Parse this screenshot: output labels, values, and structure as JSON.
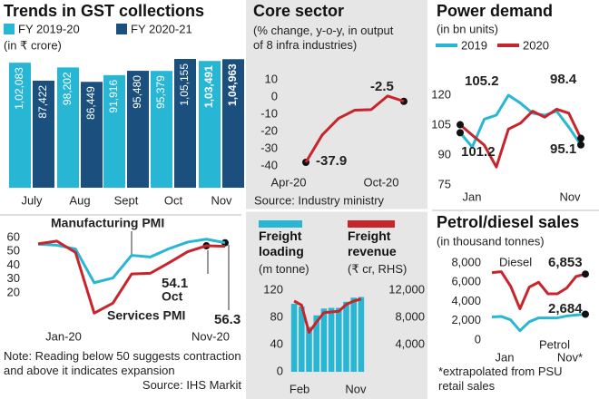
{
  "chart_data": [
    {
      "type": "bar",
      "title": "Trends in GST collections",
      "subtitle": "(in ₹ crore)",
      "categories": [
        "July",
        "Aug",
        "Sept",
        "Oct",
        "Nov"
      ],
      "series": [
        {
          "name": "FY 2019-20",
          "color": "#27b7d4",
          "values": [
            102083,
            98202,
            91916,
            95379,
            103491
          ],
          "value_labels": [
            "1,02,083",
            "98,202",
            "91,916",
            "95,379",
            "1,03,491"
          ]
        },
        {
          "name": "FY 2020-21",
          "color": "#1b4f7e",
          "values": [
            87422,
            86449,
            95480,
            105155,
            104963
          ],
          "value_labels": [
            "87,422",
            "86,449",
            "95,480",
            "1,05,155",
            "1,04,963"
          ]
        }
      ]
    },
    {
      "type": "line",
      "categories": [
        "Jan-20",
        null,
        null,
        null,
        null,
        null,
        null,
        null,
        null,
        null,
        "Nov-20"
      ],
      "series": [
        {
          "name": "Manufacturing PMI",
          "color": "#27b7d4",
          "values": [
            55.3,
            54.5,
            51.8,
            27.4,
            30.8,
            47.2,
            46.0,
            52.0,
            56.8,
            58.9,
            56.3
          ]
        },
        {
          "name": "Services PMI",
          "color": "#c8242b",
          "values": [
            55.5,
            57.5,
            49.3,
            5.4,
            12.6,
            33.7,
            34.2,
            41.8,
            49.8,
            54.1,
            53.7
          ]
        }
      ],
      "annotations": [
        "Oct"
      ],
      "ylim": [
        0,
        62
      ],
      "yticks": [
        20,
        30,
        40,
        50,
        60
      ],
      "note": "Note: Reading below 50 suggests contraction and above it indicates expansion",
      "source": "Source: IHS Markit"
    },
    {
      "type": "line",
      "title": "Core sector",
      "subtitle": "(% change, y-o-y, in output of 8 infra industries)",
      "categories": [
        "Apr-20",
        null,
        null,
        null,
        null,
        null,
        "Oct-20"
      ],
      "series": [
        {
          "color": "#c8242b",
          "values": [
            -37.9,
            -22.0,
            -12.4,
            -7.6,
            -7.3,
            0.6,
            -2.5
          ]
        }
      ],
      "ylim": [
        -40,
        10
      ],
      "yticks": [
        10,
        0,
        -10,
        -20,
        -30,
        -40
      ],
      "source": "Source: Industry ministry"
    },
    {
      "type": "bar-line",
      "categories": [
        "Feb",
        null,
        null,
        null,
        null,
        null,
        null,
        null,
        null,
        "Nov"
      ],
      "series": [
        {
          "name": "Freight loading",
          "unit": "(m tonne)",
          "color": "#27b7d4",
          "values": [
            100,
            96,
            66,
            83,
            93,
            94,
            94,
            103,
            109,
            110
          ]
        },
        {
          "name": "Freight revenue",
          "unit": "(₹ cr, RHS)",
          "color": "#c8242b",
          "axis": "y2",
          "values": [
            10400,
            9800,
            5800,
            7300,
            8700,
            8800,
            8900,
            9900,
            10400,
            10700
          ]
        }
      ],
      "ylim": [
        0,
        120
      ],
      "yticks": [
        0,
        40,
        80,
        120
      ],
      "y2lim": [
        0,
        12000
      ],
      "y2ticks": [
        {
          "value": 4000,
          "label": "4,000"
        },
        {
          "value": 8000,
          "label": "8,000"
        },
        {
          "value": 12000,
          "label": "12,000"
        }
      ]
    },
    {
      "type": "line",
      "title": "Power demand",
      "subtitle": "(in bn units)",
      "categories": [
        "Jan",
        null,
        null,
        null,
        null,
        null,
        null,
        null,
        null,
        null,
        "Nov"
      ],
      "series": [
        {
          "name": "2019",
          "color": "#27b7d4",
          "values": [
            101.2,
            94.0,
            108.0,
            110.0,
            120.0,
            116.0,
            111.0,
            110.0,
            112.0,
            104.0,
            95.1
          ]
        },
        {
          "name": "2020",
          "color": "#c8242b",
          "values": [
            105.2,
            100.0,
            95.0,
            84.0,
            103.0,
            106.0,
            112.0,
            109.0,
            113.0,
            111.0,
            98.4
          ]
        }
      ],
      "ylim": [
        72,
        128
      ],
      "yticks": [
        75,
        90,
        105,
        120
      ]
    },
    {
      "type": "line",
      "title": "Petrol/diesel sales",
      "subtitle": "(in thousand tonnes)",
      "categories": [
        "Jan",
        null,
        null,
        null,
        null,
        null,
        null,
        null,
        null,
        null,
        "Nov*"
      ],
      "series": [
        {
          "name": "Diesel",
          "color": "#c8242b",
          "values": [
            7000,
            7100,
            5600,
            3250,
            5500,
            6000,
            4800,
            4800,
            5400,
            6600,
            6853
          ],
          "value_labels": [
            null,
            null,
            null,
            null,
            null,
            null,
            null,
            null,
            null,
            null,
            "6,853"
          ]
        },
        {
          "name": "Petrol",
          "color": "#27b7d4",
          "values": [
            2400,
            2450,
            2100,
            970,
            1900,
            2300,
            2300,
            2300,
            2500,
            2600,
            2684
          ],
          "value_labels": [
            null,
            null,
            null,
            null,
            null,
            null,
            null,
            null,
            null,
            null,
            "2,684"
          ]
        }
      ],
      "ylim": [
        0,
        8500
      ],
      "yticks": [
        0,
        {
          "value": 2000,
          "label": "2,000"
        },
        {
          "value": 4000,
          "label": "4,000"
        },
        {
          "value": 6000,
          "label": "6,000"
        },
        {
          "value": 8000,
          "label": "8,000"
        }
      ],
      "footnote": "*extrapolated from PSU retail sales"
    }
  ]
}
